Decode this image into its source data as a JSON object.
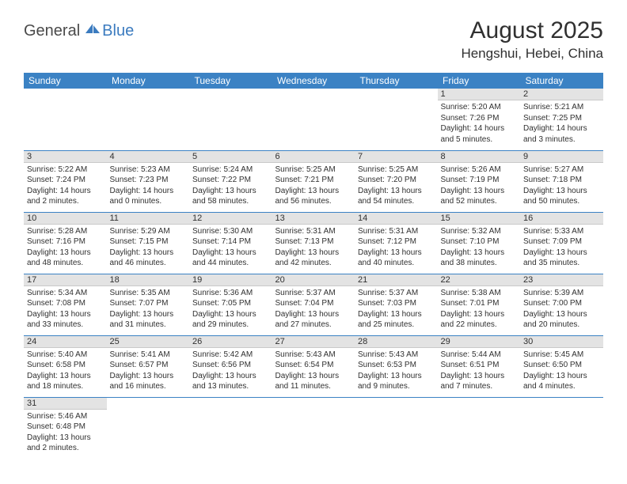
{
  "logo": {
    "text_general": "General",
    "text_blue": "Blue",
    "general_color": "#4a4a4a",
    "blue_color": "#3b7bbf",
    "sail_color": "#3b7bbf"
  },
  "header": {
    "month_title": "August 2025",
    "location": "Hengshui, Hebei, China",
    "title_color": "#303030",
    "title_fontsize": 30,
    "location_fontsize": 17
  },
  "calendar": {
    "header_bg": "#3b82c4",
    "header_text_color": "#ffffff",
    "daynum_bg": "#e3e3e3",
    "row_border_color": "#3b82c4",
    "body_text_color": "#303030",
    "columns": [
      "Sunday",
      "Monday",
      "Tuesday",
      "Wednesday",
      "Thursday",
      "Friday",
      "Saturday"
    ],
    "weeks": [
      [
        null,
        null,
        null,
        null,
        null,
        {
          "day": "1",
          "sunrise": "Sunrise: 5:20 AM",
          "sunset": "Sunset: 7:26 PM",
          "daylight": "Daylight: 14 hours and 5 minutes."
        },
        {
          "day": "2",
          "sunrise": "Sunrise: 5:21 AM",
          "sunset": "Sunset: 7:25 PM",
          "daylight": "Daylight: 14 hours and 3 minutes."
        }
      ],
      [
        {
          "day": "3",
          "sunrise": "Sunrise: 5:22 AM",
          "sunset": "Sunset: 7:24 PM",
          "daylight": "Daylight: 14 hours and 2 minutes."
        },
        {
          "day": "4",
          "sunrise": "Sunrise: 5:23 AM",
          "sunset": "Sunset: 7:23 PM",
          "daylight": "Daylight: 14 hours and 0 minutes."
        },
        {
          "day": "5",
          "sunrise": "Sunrise: 5:24 AM",
          "sunset": "Sunset: 7:22 PM",
          "daylight": "Daylight: 13 hours and 58 minutes."
        },
        {
          "day": "6",
          "sunrise": "Sunrise: 5:25 AM",
          "sunset": "Sunset: 7:21 PM",
          "daylight": "Daylight: 13 hours and 56 minutes."
        },
        {
          "day": "7",
          "sunrise": "Sunrise: 5:25 AM",
          "sunset": "Sunset: 7:20 PM",
          "daylight": "Daylight: 13 hours and 54 minutes."
        },
        {
          "day": "8",
          "sunrise": "Sunrise: 5:26 AM",
          "sunset": "Sunset: 7:19 PM",
          "daylight": "Daylight: 13 hours and 52 minutes."
        },
        {
          "day": "9",
          "sunrise": "Sunrise: 5:27 AM",
          "sunset": "Sunset: 7:18 PM",
          "daylight": "Daylight: 13 hours and 50 minutes."
        }
      ],
      [
        {
          "day": "10",
          "sunrise": "Sunrise: 5:28 AM",
          "sunset": "Sunset: 7:16 PM",
          "daylight": "Daylight: 13 hours and 48 minutes."
        },
        {
          "day": "11",
          "sunrise": "Sunrise: 5:29 AM",
          "sunset": "Sunset: 7:15 PM",
          "daylight": "Daylight: 13 hours and 46 minutes."
        },
        {
          "day": "12",
          "sunrise": "Sunrise: 5:30 AM",
          "sunset": "Sunset: 7:14 PM",
          "daylight": "Daylight: 13 hours and 44 minutes."
        },
        {
          "day": "13",
          "sunrise": "Sunrise: 5:31 AM",
          "sunset": "Sunset: 7:13 PM",
          "daylight": "Daylight: 13 hours and 42 minutes."
        },
        {
          "day": "14",
          "sunrise": "Sunrise: 5:31 AM",
          "sunset": "Sunset: 7:12 PM",
          "daylight": "Daylight: 13 hours and 40 minutes."
        },
        {
          "day": "15",
          "sunrise": "Sunrise: 5:32 AM",
          "sunset": "Sunset: 7:10 PM",
          "daylight": "Daylight: 13 hours and 38 minutes."
        },
        {
          "day": "16",
          "sunrise": "Sunrise: 5:33 AM",
          "sunset": "Sunset: 7:09 PM",
          "daylight": "Daylight: 13 hours and 35 minutes."
        }
      ],
      [
        {
          "day": "17",
          "sunrise": "Sunrise: 5:34 AM",
          "sunset": "Sunset: 7:08 PM",
          "daylight": "Daylight: 13 hours and 33 minutes."
        },
        {
          "day": "18",
          "sunrise": "Sunrise: 5:35 AM",
          "sunset": "Sunset: 7:07 PM",
          "daylight": "Daylight: 13 hours and 31 minutes."
        },
        {
          "day": "19",
          "sunrise": "Sunrise: 5:36 AM",
          "sunset": "Sunset: 7:05 PM",
          "daylight": "Daylight: 13 hours and 29 minutes."
        },
        {
          "day": "20",
          "sunrise": "Sunrise: 5:37 AM",
          "sunset": "Sunset: 7:04 PM",
          "daylight": "Daylight: 13 hours and 27 minutes."
        },
        {
          "day": "21",
          "sunrise": "Sunrise: 5:37 AM",
          "sunset": "Sunset: 7:03 PM",
          "daylight": "Daylight: 13 hours and 25 minutes."
        },
        {
          "day": "22",
          "sunrise": "Sunrise: 5:38 AM",
          "sunset": "Sunset: 7:01 PM",
          "daylight": "Daylight: 13 hours and 22 minutes."
        },
        {
          "day": "23",
          "sunrise": "Sunrise: 5:39 AM",
          "sunset": "Sunset: 7:00 PM",
          "daylight": "Daylight: 13 hours and 20 minutes."
        }
      ],
      [
        {
          "day": "24",
          "sunrise": "Sunrise: 5:40 AM",
          "sunset": "Sunset: 6:58 PM",
          "daylight": "Daylight: 13 hours and 18 minutes."
        },
        {
          "day": "25",
          "sunrise": "Sunrise: 5:41 AM",
          "sunset": "Sunset: 6:57 PM",
          "daylight": "Daylight: 13 hours and 16 minutes."
        },
        {
          "day": "26",
          "sunrise": "Sunrise: 5:42 AM",
          "sunset": "Sunset: 6:56 PM",
          "daylight": "Daylight: 13 hours and 13 minutes."
        },
        {
          "day": "27",
          "sunrise": "Sunrise: 5:43 AM",
          "sunset": "Sunset: 6:54 PM",
          "daylight": "Daylight: 13 hours and 11 minutes."
        },
        {
          "day": "28",
          "sunrise": "Sunrise: 5:43 AM",
          "sunset": "Sunset: 6:53 PM",
          "daylight": "Daylight: 13 hours and 9 minutes."
        },
        {
          "day": "29",
          "sunrise": "Sunrise: 5:44 AM",
          "sunset": "Sunset: 6:51 PM",
          "daylight": "Daylight: 13 hours and 7 minutes."
        },
        {
          "day": "30",
          "sunrise": "Sunrise: 5:45 AM",
          "sunset": "Sunset: 6:50 PM",
          "daylight": "Daylight: 13 hours and 4 minutes."
        }
      ],
      [
        {
          "day": "31",
          "sunrise": "Sunrise: 5:46 AM",
          "sunset": "Sunset: 6:48 PM",
          "daylight": "Daylight: 13 hours and 2 minutes."
        },
        null,
        null,
        null,
        null,
        null,
        null
      ]
    ]
  }
}
